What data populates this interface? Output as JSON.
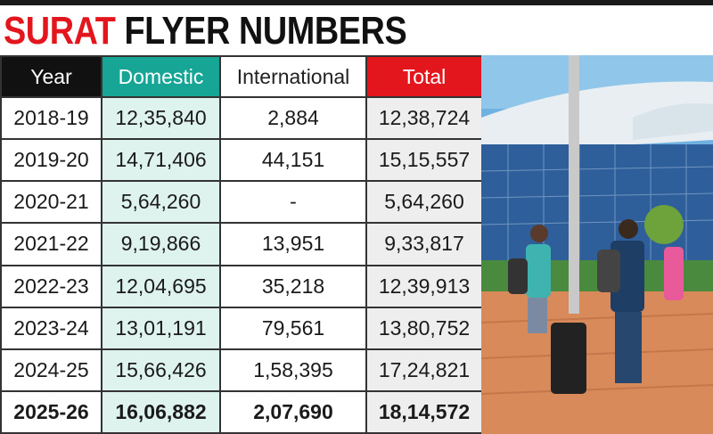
{
  "title": {
    "part1": "SURAT",
    "part2": "FLYER NUMBERS"
  },
  "table": {
    "headers": [
      "Year",
      "Domestic",
      "International",
      "Total"
    ],
    "rows": [
      [
        "2018-19",
        "12,35,840",
        "2,884",
        "12,38,724"
      ],
      [
        "2019-20",
        "14,71,406",
        "44,151",
        "15,15,557"
      ],
      [
        "2020-21",
        "5,64,260",
        "-",
        "5,64,260"
      ],
      [
        "2021-22",
        "9,19,866",
        "13,951",
        "9,33,817"
      ],
      [
        "2022-23",
        "12,04,695",
        "35,218",
        "12,39,913"
      ],
      [
        "2023-24",
        "13,01,191",
        "79,561",
        "13,80,752"
      ],
      [
        "2024-25",
        "15,66,426",
        "1,58,395",
        "17,24,821"
      ],
      [
        "2025-26",
        "16,06,882",
        "2,07,690",
        "18,14,572"
      ]
    ]
  }
}
